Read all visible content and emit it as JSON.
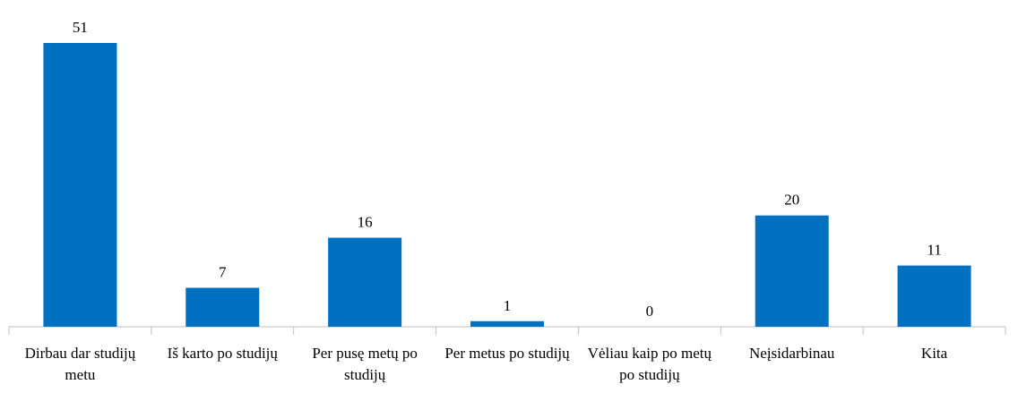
{
  "chart_data": {
    "type": "bar",
    "categories": [
      "Dirbau dar studijų metu",
      "Iš karto po studijų",
      "Per pusę metų po studijų",
      "Per metus po studijų",
      "Vėliau kaip po metų po studijų",
      "Neįsidarbinau",
      "Kita"
    ],
    "values": [
      51,
      7,
      16,
      1,
      0,
      20,
      11
    ],
    "color": "#0070c0"
  }
}
